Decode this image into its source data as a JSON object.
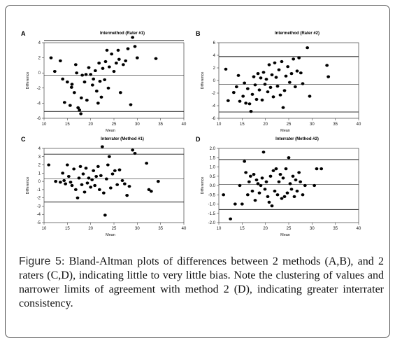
{
  "chart_data": [
    {
      "type": "scatter",
      "panel": "A",
      "title": "Intermethod (Rater #1)",
      "xlabel": "Mean",
      "ylabel": "Difference",
      "xlim": [
        10,
        40
      ],
      "ylim": [
        -6,
        4
      ],
      "xticks": [
        10,
        15,
        20,
        25,
        30,
        35,
        40
      ],
      "yticks": [
        -6,
        -4,
        -2,
        0,
        2,
        4
      ],
      "reference_lines": [
        4.3,
        -0.3,
        -5.1
      ],
      "grid": false,
      "points": [
        [
          11.5,
          2.0
        ],
        [
          12.3,
          0.2
        ],
        [
          13.5,
          1.6
        ],
        [
          14.0,
          -0.8
        ],
        [
          14.4,
          -3.9
        ],
        [
          15.0,
          -1.2
        ],
        [
          15.6,
          -4.3
        ],
        [
          15.9,
          -1.9
        ],
        [
          16.0,
          -1.5
        ],
        [
          16.5,
          -2.6
        ],
        [
          16.8,
          1.1
        ],
        [
          17.0,
          0.0
        ],
        [
          17.3,
          -4.6
        ],
        [
          17.6,
          -4.9
        ],
        [
          17.9,
          -5.4
        ],
        [
          18.0,
          -3.3
        ],
        [
          18.2,
          -0.3
        ],
        [
          18.7,
          -1.2
        ],
        [
          19.0,
          -0.2
        ],
        [
          19.2,
          -3.6
        ],
        [
          19.6,
          0.7
        ],
        [
          20.0,
          -0.2
        ],
        [
          20.4,
          -1.6
        ],
        [
          20.6,
          -0.8
        ],
        [
          21.0,
          0.3
        ],
        [
          21.3,
          -2.4
        ],
        [
          21.6,
          -4.0
        ],
        [
          21.8,
          1.3
        ],
        [
          22.0,
          -1.1
        ],
        [
          22.3,
          -3.2
        ],
        [
          22.6,
          0.6
        ],
        [
          23.0,
          -0.9
        ],
        [
          23.2,
          1.5
        ],
        [
          23.5,
          3.0
        ],
        [
          23.8,
          -2.0
        ],
        [
          24.0,
          0.8
        ],
        [
          24.5,
          2.5
        ],
        [
          25.0,
          0.2
        ],
        [
          25.5,
          1.3
        ],
        [
          25.9,
          3.0
        ],
        [
          26.1,
          1.8
        ],
        [
          26.4,
          -2.6
        ],
        [
          27.0,
          1.1
        ],
        [
          27.5,
          1.6
        ],
        [
          28.0,
          3.2
        ],
        [
          28.6,
          -4.2
        ],
        [
          29.0,
          4.7
        ],
        [
          29.5,
          3.5
        ],
        [
          30.0,
          2.0
        ],
        [
          34.0,
          1.9
        ]
      ]
    },
    {
      "type": "scatter",
      "panel": "B",
      "title": "Intermethod (Rater #2)",
      "xlabel": "Mean",
      "ylabel": "Difference",
      "xlim": [
        10,
        40
      ],
      "ylim": [
        -6,
        6
      ],
      "xticks": [
        10,
        15,
        20,
        25,
        30,
        35,
        40
      ],
      "yticks": [
        -6,
        -4,
        -2,
        0,
        2,
        4,
        6
      ],
      "reference_lines": [
        3.8,
        -0.6,
        -5.0
      ],
      "grid": false,
      "points": [
        [
          11.5,
          1.8
        ],
        [
          12.0,
          -3.2
        ],
        [
          13.2,
          -1.9
        ],
        [
          13.8,
          -1.0
        ],
        [
          14.2,
          0.8
        ],
        [
          14.5,
          -3.3
        ],
        [
          15.2,
          -2.5
        ],
        [
          15.5,
          -0.4
        ],
        [
          15.8,
          -3.6
        ],
        [
          16.2,
          -1.3
        ],
        [
          16.6,
          -3.7
        ],
        [
          16.9,
          -4.9
        ],
        [
          17.2,
          -2.2
        ],
        [
          17.5,
          0.6
        ],
        [
          17.8,
          -0.7
        ],
        [
          18.1,
          -3.0
        ],
        [
          18.4,
          1.1
        ],
        [
          18.7,
          -1.5
        ],
        [
          19.0,
          0.4
        ],
        [
          19.3,
          -3.1
        ],
        [
          19.6,
          1.3
        ],
        [
          19.9,
          -0.6
        ],
        [
          20.2,
          0.2
        ],
        [
          20.5,
          -1.8
        ],
        [
          20.8,
          2.5
        ],
        [
          21.1,
          -1.1
        ],
        [
          21.4,
          0.9
        ],
        [
          21.7,
          -2.6
        ],
        [
          22.0,
          2.8
        ],
        [
          22.3,
          0.5
        ],
        [
          22.6,
          -0.9
        ],
        [
          22.9,
          1.7
        ],
        [
          23.2,
          -2.3
        ],
        [
          23.5,
          3.0
        ],
        [
          23.8,
          -4.3
        ],
        [
          24.1,
          -1.6
        ],
        [
          24.4,
          0.7
        ],
        [
          24.8,
          2.2
        ],
        [
          25.2,
          -0.3
        ],
        [
          25.6,
          1.1
        ],
        [
          26.0,
          3.4
        ],
        [
          26.4,
          -1.0
        ],
        [
          26.8,
          1.5
        ],
        [
          27.2,
          3.6
        ],
        [
          27.6,
          1.2
        ],
        [
          28.0,
          -0.5
        ],
        [
          29.0,
          5.2
        ],
        [
          29.5,
          -2.5
        ],
        [
          33.2,
          2.4
        ],
        [
          33.5,
          0.6
        ]
      ]
    },
    {
      "type": "scatter",
      "panel": "C",
      "title": "Interrater (Method #1)",
      "xlabel": "Mean",
      "ylabel": "Difference",
      "xlim": [
        10,
        40
      ],
      "ylim": [
        -5,
        4
      ],
      "xticks": [
        10,
        15,
        20,
        25,
        30,
        35,
        40
      ],
      "yticks": [
        -5,
        -4,
        -3,
        -2,
        -1,
        0,
        1,
        2,
        3,
        4
      ],
      "reference_lines": [
        3.3,
        0.3,
        -2.5
      ],
      "grid": false,
      "points": [
        [
          11.0,
          2.0
        ],
        [
          12.5,
          0.0
        ],
        [
          13.5,
          -0.1
        ],
        [
          14.0,
          1.0
        ],
        [
          14.3,
          0.1
        ],
        [
          14.6,
          -0.3
        ],
        [
          15.0,
          2.0
        ],
        [
          15.3,
          0.6
        ],
        [
          15.7,
          -0.1
        ],
        [
          16.0,
          -0.5
        ],
        [
          16.4,
          1.5
        ],
        [
          16.8,
          -1.0
        ],
        [
          17.2,
          -2.0
        ],
        [
          17.5,
          0.4
        ],
        [
          17.8,
          1.8
        ],
        [
          18.1,
          -0.4
        ],
        [
          18.4,
          0.9
        ],
        [
          18.7,
          -1.3
        ],
        [
          19.0,
          1.6
        ],
        [
          19.3,
          -0.2
        ],
        [
          19.6,
          0.4
        ],
        [
          20.0,
          -0.7
        ],
        [
          20.3,
          0.2
        ],
        [
          20.6,
          1.3
        ],
        [
          20.9,
          -0.5
        ],
        [
          21.2,
          0.6
        ],
        [
          21.6,
          1.8
        ],
        [
          21.9,
          -1.0
        ],
        [
          22.2,
          0.7
        ],
        [
          22.5,
          4.2
        ],
        [
          22.8,
          -1.4
        ],
        [
          23.1,
          -4.1
        ],
        [
          23.4,
          0.3
        ],
        [
          23.7,
          2.0
        ],
        [
          24.0,
          3.0
        ],
        [
          24.3,
          -0.8
        ],
        [
          24.7,
          0.9
        ],
        [
          25.2,
          1.3
        ],
        [
          25.7,
          -0.4
        ],
        [
          26.2,
          1.4
        ],
        [
          26.8,
          0.1
        ],
        [
          27.3,
          -0.3
        ],
        [
          27.8,
          -1.7
        ],
        [
          28.3,
          -0.6
        ],
        [
          29.0,
          3.8
        ],
        [
          29.5,
          3.4
        ],
        [
          32.0,
          2.2
        ],
        [
          32.5,
          -1.0
        ],
        [
          33.0,
          -1.2
        ],
        [
          34.5,
          0.0
        ]
      ]
    },
    {
      "type": "scatter",
      "panel": "D",
      "title": "Interrater (Method #2)",
      "xlabel": "Mean",
      "ylabel": "Difference",
      "xlim": [
        10,
        40
      ],
      "ylim": [
        -2.0,
        2.0
      ],
      "xticks": [
        10,
        15,
        20,
        25,
        30,
        35,
        40
      ],
      "yticks": [
        -2.0,
        -1.5,
        -1.0,
        -0.5,
        0.0,
        0.5,
        1.0,
        1.5,
        2.0
      ],
      "reference_lines": [
        1.4,
        0.05,
        -1.3
      ],
      "grid": false,
      "points": [
        [
          11.0,
          -0.5
        ],
        [
          12.5,
          -1.8
        ],
        [
          13.5,
          -1.0
        ],
        [
          14.5,
          0.0
        ],
        [
          15.0,
          -1.0
        ],
        [
          15.5,
          1.3
        ],
        [
          15.8,
          0.7
        ],
        [
          16.2,
          -0.5
        ],
        [
          16.5,
          0.2
        ],
        [
          16.8,
          0.5
        ],
        [
          17.2,
          -0.3
        ],
        [
          17.5,
          0.6
        ],
        [
          17.8,
          -0.8
        ],
        [
          18.1,
          0.3
        ],
        [
          18.4,
          0.1
        ],
        [
          18.7,
          -0.4
        ],
        [
          19.0,
          0.0
        ],
        [
          19.3,
          0.4
        ],
        [
          19.6,
          1.8
        ],
        [
          19.9,
          -0.2
        ],
        [
          20.2,
          0.2
        ],
        [
          20.5,
          -0.6
        ],
        [
          20.8,
          -0.9
        ],
        [
          21.1,
          0.5
        ],
        [
          21.4,
          -1.1
        ],
        [
          21.7,
          0.8
        ],
        [
          22.0,
          -0.3
        ],
        [
          22.3,
          0.9
        ],
        [
          22.6,
          -0.5
        ],
        [
          22.9,
          0.2
        ],
        [
          23.2,
          0.6
        ],
        [
          23.5,
          -0.7
        ],
        [
          23.8,
          0.4
        ],
        [
          24.1,
          -0.6
        ],
        [
          24.4,
          0.9
        ],
        [
          24.7,
          -0.4
        ],
        [
          25.0,
          1.5
        ],
        [
          25.3,
          0.1
        ],
        [
          25.6,
          -0.2
        ],
        [
          25.9,
          0.5
        ],
        [
          26.2,
          -0.6
        ],
        [
          26.5,
          0.3
        ],
        [
          26.8,
          -0.3
        ],
        [
          27.2,
          0.7
        ],
        [
          27.5,
          0.2
        ],
        [
          28.0,
          -0.5
        ],
        [
          28.5,
          0.0
        ],
        [
          30.5,
          0.0
        ],
        [
          31.0,
          0.9
        ],
        [
          32.0,
          0.9
        ]
      ]
    }
  ],
  "caption": {
    "label": "Figure 5",
    "text": ": Bland-Altman plots of differences between 2 methods (A,B), and 2 raters (C,D), indicating little to very little bias. Note the clustering of values and narrower limits of agreement with method 2 (D), indicating greater interrater consistency."
  },
  "colors": {
    "points": "#000000",
    "lines": "#333333",
    "frame": "#555555"
  }
}
